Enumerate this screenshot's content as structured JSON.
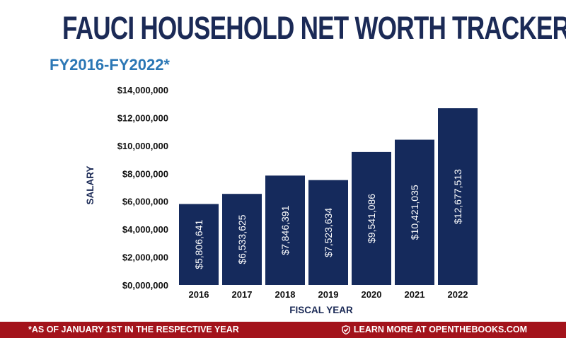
{
  "header": {
    "title": "FAUCI HOUSEHOLD NET WORTH TRACKER",
    "subtitle": "FY2016-FY2022*"
  },
  "footer": {
    "footnote": "*AS OF JANUARY 1ST IN THE RESPECTIVE YEAR",
    "cta_label": "LEARN MORE AT OPENTHEBOOKS.COM",
    "cta_icon": "checkmark-shield-icon"
  },
  "colors": {
    "title": "#1b2a56",
    "subtitle": "#2b77b5",
    "bar": "#152a5c",
    "footer_bg": "#a3131b"
  },
  "chart_data": {
    "type": "bar",
    "title": "FAUCI HOUSEHOLD NET WORTH TRACKER",
    "subtitle": "FY2016-FY2022*",
    "xlabel": "FISCAL YEAR",
    "ylabel": "SALARY",
    "categories": [
      "2016",
      "2017",
      "2018",
      "2019",
      "2020",
      "2021",
      "2022"
    ],
    "values": [
      5806641,
      6533625,
      7846391,
      7523634,
      9541086,
      10421035,
      12677513
    ],
    "value_labels": [
      "$5,806,641",
      "$6,533,625",
      "$7,846,391",
      "$7,523,634",
      "$9,541,086",
      "$10,421,035",
      "$12,677,513"
    ],
    "ylim": [
      0,
      14000000
    ],
    "yticks": [
      0,
      2000000,
      4000000,
      6000000,
      8000000,
      10000000,
      12000000,
      14000000
    ],
    "ytick_labels": [
      "$0,000,000",
      "$2,000,000",
      "$4,000,000",
      "$6,000,000",
      "$8,000,000",
      "$10,000,000",
      "$12,000,000",
      "$14,000,000"
    ],
    "grid": false,
    "legend": "none"
  }
}
